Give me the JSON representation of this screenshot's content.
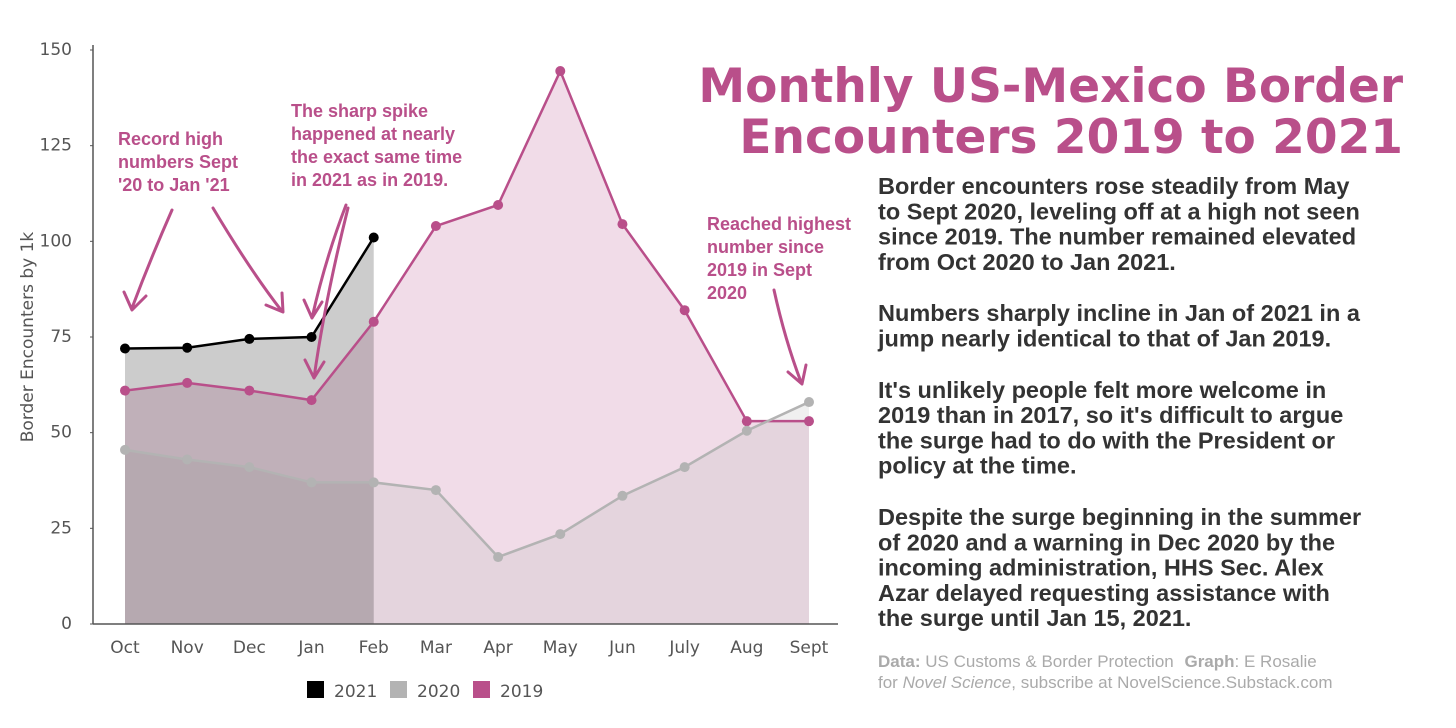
{
  "chart_data": {
    "type": "area",
    "title": [
      "Monthly US-Mexico Border",
      "Encounters 2019 to 2021"
    ],
    "y_label": "Border Encounters by 1k",
    "categories": [
      "Oct",
      "Nov",
      "Dec",
      "Jan",
      "Feb",
      "Mar",
      "Apr",
      "May",
      "Jun",
      "July",
      "Aug",
      "Sept"
    ],
    "series": [
      {
        "name": "2021",
        "color": "#000000",
        "values": [
          72,
          72.2,
          74.5,
          75,
          101,
          null,
          null,
          null,
          null,
          null,
          null,
          null
        ]
      },
      {
        "name": "2020",
        "color": "#b3b3b3",
        "values": [
          45.5,
          43,
          41,
          37,
          37,
          35,
          17.5,
          23.5,
          33.5,
          41,
          50.5,
          58
        ]
      },
      {
        "name": "2019",
        "color": "#b94f8a",
        "values": [
          61,
          63,
          61,
          58.5,
          79,
          104,
          109.5,
          144.5,
          104.5,
          82,
          53,
          53
        ]
      }
    ],
    "ylim": [
      0,
      150
    ],
    "yticks": [
      0,
      25,
      50,
      75,
      100,
      125,
      150
    ],
    "annotations": [
      [
        "Record high",
        "numbers Sept",
        "'20 to Jan '21"
      ],
      [
        "The sharp spike",
        "happened at nearly",
        "the exact same time",
        "in 2021 as in 2019."
      ],
      [
        "Reached highest",
        "number since",
        "2019 in Sept",
        "2020"
      ]
    ],
    "paragraphs": [
      [
        "Border encounters rose steadily from May",
        "to Sept 2020, leveling off at a high not seen",
        "since 2019. The number remained elevated",
        "from Oct 2020 to Jan 2021."
      ],
      [
        "Numbers sharply incline in Jan of 2021 in a",
        "jump nearly identical to that of Jan 2019."
      ],
      [
        "It's unlikely people felt more welcome in",
        "2019 than in 2017, so it's difficult to argue",
        "the surge had to do with the President or",
        "policy at the time."
      ],
      [
        "Despite the surge beginning in the summer",
        "of 2020 and a warning in Dec 2020 by the",
        "incoming administration, HHS Sec. Alex",
        "Azar delayed requesting assistance with",
        "the surge until Jan 15, 2021."
      ]
    ],
    "source": {
      "data_label": "Data:",
      "data_text": "US Customs & Border Protection",
      "graph_label": "Graph",
      "graph_text": ": E Rosalie",
      "line2_prefix": "for",
      "publication": "Novel Science",
      "line2_suffix": ", subscribe at NovelScience.Substack.com"
    }
  }
}
